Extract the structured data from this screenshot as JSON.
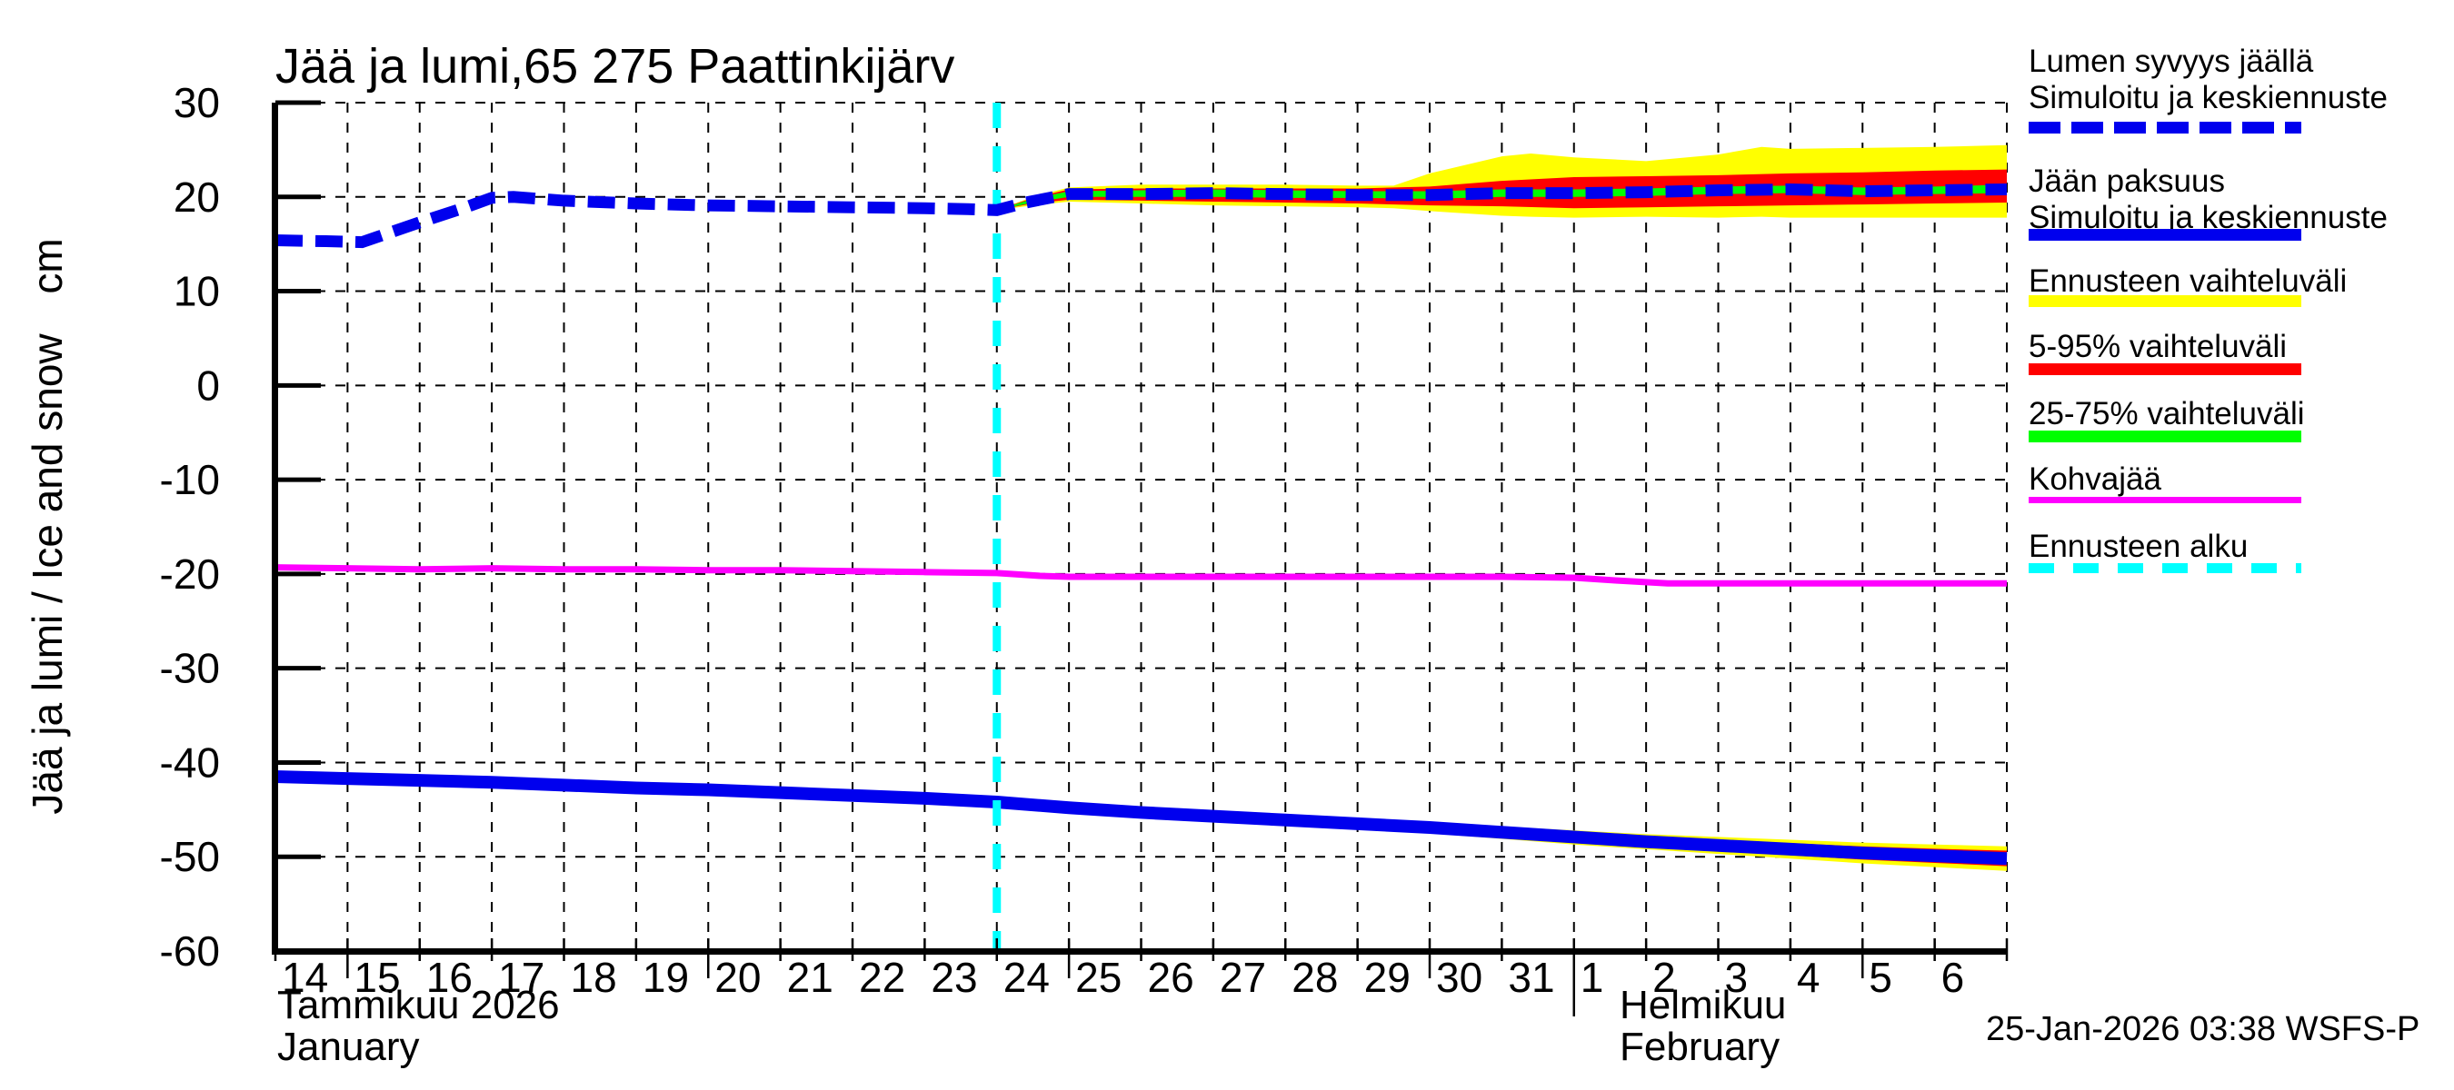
{
  "title": "Jää ja lumi,65 275 Paattinkijärv",
  "y_axis": {
    "label": "Jää ja lumi / Ice and snow",
    "unit": "cm"
  },
  "months": {
    "fi_1": "Tammikuu 2026",
    "en_1": "January",
    "fi_2": "Helmikuu",
    "en_2": "February"
  },
  "timestamp": "25-Jan-2026 03:38 WSFS-P",
  "colors": {
    "blue": "#0000ee",
    "yellow": "#ffff00",
    "red": "#ff0000",
    "green": "#00ff00",
    "magenta": "#ff00ff",
    "cyan": "#00ffff",
    "black": "#000000"
  },
  "legend": {
    "items": [
      {
        "id": "snow-sim",
        "lines": [
          "Lumen syvyys jäällä",
          "Simuloitu ja keskiennuste"
        ],
        "swatch": {
          "color": "#0000ee",
          "style": "dashed",
          "thickness": 13,
          "dash": 35,
          "gap": 12
        }
      },
      {
        "id": "ice-sim",
        "lines": [
          "Jään paksuus",
          "Simuloitu ja keskiennuste"
        ],
        "swatch": {
          "color": "#0000ee",
          "style": "solid",
          "thickness": 13
        }
      },
      {
        "id": "fc-range",
        "lines": [
          "Ennusteen vaihteluväli"
        ],
        "swatch": {
          "color": "#ffff00",
          "style": "solid",
          "thickness": 13
        }
      },
      {
        "id": "p5-95",
        "lines": [
          "5-95% vaihteluväli"
        ],
        "swatch": {
          "color": "#ff0000",
          "style": "solid",
          "thickness": 13
        }
      },
      {
        "id": "p25-75",
        "lines": [
          "25-75% vaihteluväli"
        ],
        "swatch": {
          "color": "#00ff00",
          "style": "solid",
          "thickness": 13
        }
      },
      {
        "id": "kohvajaa",
        "lines": [
          "Kohvajää"
        ],
        "swatch": {
          "color": "#ff00ff",
          "style": "solid",
          "thickness": 7
        }
      },
      {
        "id": "fc-start",
        "lines": [
          "Ennusteen alku"
        ],
        "swatch": {
          "color": "#00ffff",
          "style": "dashed",
          "thickness": 11,
          "dash": 28,
          "gap": 21
        }
      }
    ]
  },
  "chart_data": {
    "type": "line",
    "title": "Jää ja lumi,65 275 Paattinkijärv",
    "xlabel": "Tammikuu 2026 / January — Helmikuu / February",
    "ylabel": "Jää ja lumi / Ice and snow (cm)",
    "ylim": [
      -60,
      30
    ],
    "grid": true,
    "legend_position": "right",
    "y_ticks": [
      30,
      20,
      10,
      0,
      -10,
      -20,
      -30,
      -40,
      -50,
      -60
    ],
    "x_tick_labels": [
      "14",
      "15",
      "16",
      "17",
      "18",
      "19",
      "20",
      "21",
      "22",
      "23",
      "24",
      "25",
      "26",
      "27",
      "28",
      "29",
      "30",
      "31",
      "1",
      "2",
      "3",
      "4",
      "5",
      "6"
    ],
    "x_major_days": [
      1,
      6,
      11,
      16,
      22
    ],
    "days_total": 24,
    "month_boundary_day": 18,
    "forecast_start_day": 10,
    "forecast_start_label": "Ennusteen alku",
    "series": [
      {
        "id": "snow_depth",
        "name": "Lumen syvyys jäällä - Simuloitu ja keskiennuste",
        "style": "dashed",
        "color": "#0000ee",
        "width": 13,
        "points": [
          [
            0,
            15.4
          ],
          [
            0.7,
            15.3
          ],
          [
            1.2,
            15.2
          ],
          [
            2,
            17.3
          ],
          [
            2.6,
            18.8
          ],
          [
            3,
            19.9
          ],
          [
            3.3,
            20.0
          ],
          [
            4,
            19.6
          ],
          [
            5,
            19.3
          ],
          [
            6,
            19.1
          ],
          [
            7,
            19.0
          ],
          [
            8,
            18.9
          ],
          [
            9,
            18.8
          ],
          [
            9.6,
            18.7
          ],
          [
            10,
            18.6
          ],
          [
            10.4,
            19.4
          ],
          [
            11,
            20.3
          ],
          [
            12,
            20.3
          ],
          [
            13,
            20.4
          ],
          [
            14,
            20.3
          ],
          [
            15,
            20.2
          ],
          [
            16,
            20.2
          ],
          [
            17,
            20.4
          ],
          [
            18,
            20.4
          ],
          [
            19,
            20.5
          ],
          [
            20,
            20.7
          ],
          [
            21,
            20.8
          ],
          [
            22,
            20.6
          ],
          [
            23,
            20.7
          ],
          [
            24,
            20.8
          ]
        ]
      },
      {
        "id": "ice_thickness",
        "name": "Jään paksuus - Simuloitu ja keskiennuste",
        "style": "solid",
        "color": "#0000ee",
        "width": 14,
        "points": [
          [
            0,
            -41.5
          ],
          [
            1,
            -41.7
          ],
          [
            2,
            -41.9
          ],
          [
            3,
            -42.1
          ],
          [
            4,
            -42.4
          ],
          [
            5,
            -42.7
          ],
          [
            6,
            -42.9
          ],
          [
            7,
            -43.2
          ],
          [
            8,
            -43.5
          ],
          [
            9,
            -43.8
          ],
          [
            10,
            -44.2
          ],
          [
            11,
            -44.8
          ],
          [
            12,
            -45.3
          ],
          [
            13,
            -45.7
          ],
          [
            14,
            -46.1
          ],
          [
            15,
            -46.5
          ],
          [
            16,
            -46.9
          ],
          [
            17,
            -47.4
          ],
          [
            18,
            -47.9
          ],
          [
            19,
            -48.4
          ],
          [
            20,
            -48.8
          ],
          [
            21,
            -49.2
          ],
          [
            22,
            -49.6
          ],
          [
            23,
            -49.9
          ],
          [
            24,
            -50.2
          ]
        ]
      },
      {
        "id": "kohvajaa",
        "name": "Kohvajää",
        "style": "solid",
        "color": "#ff00ff",
        "width": 7,
        "points": [
          [
            0,
            -19.3
          ],
          [
            1,
            -19.4
          ],
          [
            2,
            -19.5
          ],
          [
            3,
            -19.4
          ],
          [
            4,
            -19.5
          ],
          [
            5,
            -19.5
          ],
          [
            6,
            -19.6
          ],
          [
            7,
            -19.6
          ],
          [
            8,
            -19.7
          ],
          [
            9,
            -19.8
          ],
          [
            10,
            -19.9
          ],
          [
            10.6,
            -20.2
          ],
          [
            11,
            -20.3
          ],
          [
            12,
            -20.3
          ],
          [
            13,
            -20.3
          ],
          [
            14,
            -20.3
          ],
          [
            15,
            -20.3
          ],
          [
            16,
            -20.3
          ],
          [
            17,
            -20.3
          ],
          [
            18,
            -20.4
          ],
          [
            18.6,
            -20.7
          ],
          [
            19.3,
            -21.0
          ],
          [
            20,
            -21.0
          ],
          [
            21,
            -21.0
          ],
          [
            22,
            -21.0
          ],
          [
            23,
            -21.0
          ],
          [
            24,
            -21.0
          ]
        ]
      }
    ],
    "bands": [
      {
        "id": "snow_range_yellow",
        "name": "Ennusteen vaihteluväli (lumi)",
        "color": "#ffff00",
        "points": [
          [
            10,
            18.6,
            18.6
          ],
          [
            10.5,
            20.0,
            19.1
          ],
          [
            11,
            21.0,
            19.5
          ],
          [
            12,
            21.3,
            19.3
          ],
          [
            13,
            21.3,
            19.1
          ],
          [
            14,
            21.3,
            19.0
          ],
          [
            15,
            21.2,
            18.9
          ],
          [
            15.5,
            21.2,
            18.8
          ],
          [
            16,
            22.5,
            18.5
          ],
          [
            17,
            24.3,
            18.0
          ],
          [
            17.4,
            24.6,
            17.9
          ],
          [
            18,
            24.2,
            17.8
          ],
          [
            19,
            23.8,
            17.9
          ],
          [
            20,
            24.5,
            17.8
          ],
          [
            20.6,
            25.3,
            17.9
          ],
          [
            21,
            25.1,
            17.8
          ],
          [
            22,
            25.2,
            17.8
          ],
          [
            23,
            25.3,
            17.8
          ],
          [
            24,
            25.5,
            17.8
          ]
        ]
      },
      {
        "id": "snow_range_red",
        "name": "5-95% vaihteluväli (lumi)",
        "color": "#ff0000",
        "points": [
          [
            10,
            18.6,
            18.6
          ],
          [
            10.5,
            19.9,
            19.3
          ],
          [
            11,
            20.8,
            19.7
          ],
          [
            12,
            20.9,
            19.6
          ],
          [
            13,
            20.9,
            19.5
          ],
          [
            14,
            20.9,
            19.4
          ],
          [
            15,
            20.9,
            19.3
          ],
          [
            16,
            21.1,
            19.1
          ],
          [
            17,
            21.7,
            19.0
          ],
          [
            18,
            22.1,
            18.8
          ],
          [
            19,
            22.2,
            18.9
          ],
          [
            20,
            22.3,
            19.0
          ],
          [
            21,
            22.5,
            19.1
          ],
          [
            22,
            22.6,
            19.2
          ],
          [
            23,
            22.8,
            19.3
          ],
          [
            24,
            22.9,
            19.4
          ]
        ]
      },
      {
        "id": "snow_range_green",
        "name": "25-75% vaihteluväli (lumi)",
        "color": "#00ff00",
        "points": [
          [
            10,
            18.6,
            18.6
          ],
          [
            10.5,
            19.8,
            19.4
          ],
          [
            11,
            20.6,
            20.0
          ],
          [
            12,
            20.7,
            20.0
          ],
          [
            13,
            20.8,
            20.0
          ],
          [
            14,
            20.7,
            19.9
          ],
          [
            15,
            20.6,
            19.9
          ],
          [
            16,
            20.6,
            19.8
          ],
          [
            17,
            20.8,
            20.0
          ],
          [
            18,
            20.8,
            20.0
          ],
          [
            19,
            20.9,
            20.1
          ],
          [
            20,
            21.1,
            20.3
          ],
          [
            21,
            21.2,
            20.4
          ],
          [
            22,
            21.0,
            20.2
          ],
          [
            23,
            21.1,
            20.3
          ],
          [
            24,
            21.3,
            20.4
          ]
        ]
      },
      {
        "id": "ice_range_yellow",
        "name": "Ennusteen vaihteluväli (jää)",
        "color": "#ffff00",
        "points": [
          [
            10,
            -44.2,
            -44.2
          ],
          [
            11,
            -44.7,
            -44.9
          ],
          [
            12,
            -45.1,
            -45.5
          ],
          [
            13,
            -45.4,
            -46.0
          ],
          [
            14,
            -45.8,
            -46.5
          ],
          [
            15,
            -46.1,
            -47.0
          ],
          [
            16,
            -46.4,
            -47.5
          ],
          [
            17,
            -46.8,
            -48.1
          ],
          [
            18,
            -47.2,
            -48.7
          ],
          [
            19,
            -47.6,
            -49.2
          ],
          [
            20,
            -47.9,
            -49.7
          ],
          [
            21,
            -48.2,
            -50.2
          ],
          [
            22,
            -48.5,
            -50.7
          ],
          [
            23,
            -48.7,
            -51.1
          ],
          [
            24,
            -48.9,
            -51.5
          ]
        ]
      },
      {
        "id": "ice_range_red",
        "name": "5-95% vaihteluväli (jää)",
        "color": "#ff0000",
        "points": [
          [
            10,
            -44.2,
            -44.2
          ],
          [
            11,
            -44.75,
            -44.85
          ],
          [
            12,
            -45.2,
            -45.45
          ],
          [
            13,
            -45.55,
            -45.9
          ],
          [
            14,
            -45.9,
            -46.35
          ],
          [
            15,
            -46.25,
            -46.8
          ],
          [
            16,
            -46.6,
            -47.3
          ],
          [
            17,
            -47.0,
            -47.85
          ],
          [
            18,
            -47.4,
            -48.4
          ],
          [
            19,
            -47.85,
            -48.95
          ],
          [
            20,
            -48.2,
            -49.4
          ],
          [
            21,
            -48.55,
            -49.85
          ],
          [
            22,
            -48.9,
            -50.3
          ],
          [
            23,
            -49.15,
            -50.65
          ],
          [
            24,
            -49.35,
            -51.0
          ]
        ]
      },
      {
        "id": "ice_range_green",
        "name": "25-75% vaihteluväli (jää)",
        "color": "#00ff00",
        "points": [
          [
            10,
            -44.2,
            -44.2
          ],
          [
            11,
            -44.7,
            -44.9
          ],
          [
            12,
            -45.1,
            -45.5
          ],
          [
            13,
            -45.5,
            -45.9
          ],
          [
            14,
            -45.9,
            -46.3
          ],
          [
            15,
            -46.2,
            -46.8
          ],
          [
            16,
            -46.6,
            -47.2
          ],
          [
            17,
            -47.1,
            -47.7
          ],
          [
            18,
            -47.6,
            -48.2
          ],
          [
            19,
            -48.1,
            -48.7
          ],
          [
            20,
            -48.5,
            -49.1
          ],
          [
            21,
            -48.9,
            -49.5
          ],
          [
            22,
            -49.3,
            -49.9
          ],
          [
            23,
            -49.6,
            -50.2
          ],
          [
            24,
            -49.9,
            -50.5
          ]
        ]
      }
    ]
  }
}
